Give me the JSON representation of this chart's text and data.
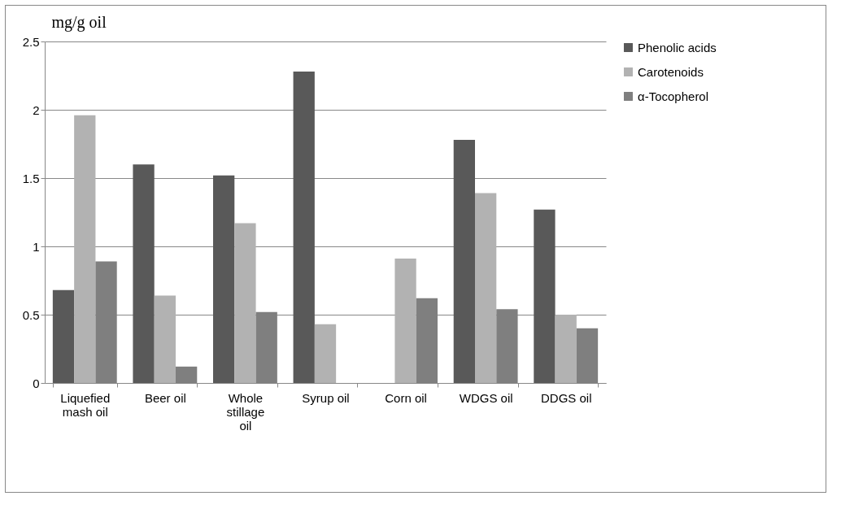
{
  "chart_data": {
    "type": "bar",
    "ylabel": "mg/g oil",
    "categories": [
      "Liquefied mash oil",
      "Beer oil",
      "Whole stillage oil",
      "Syrup oil",
      "Corn oil",
      "WDGS oil",
      "DDGS oil"
    ],
    "series": [
      {
        "name": "Phenolic acids",
        "color": "#595959",
        "values": [
          0.68,
          1.6,
          1.52,
          2.28,
          null,
          1.78,
          1.27
        ]
      },
      {
        "name": "Carotenoids",
        "color": "#b2b2b2",
        "values": [
          1.96,
          0.64,
          1.17,
          0.43,
          0.91,
          1.39,
          0.5
        ]
      },
      {
        "name": "α-Tocopherol",
        "color": "#7f7f7f",
        "values": [
          0.89,
          0.12,
          0.52,
          null,
          0.62,
          0.54,
          0.4
        ]
      }
    ],
    "ylim": [
      0,
      2.5
    ],
    "yticks": [
      0,
      0.5,
      1,
      1.5,
      2,
      2.5
    ],
    "grid": "y",
    "legend": "right"
  }
}
